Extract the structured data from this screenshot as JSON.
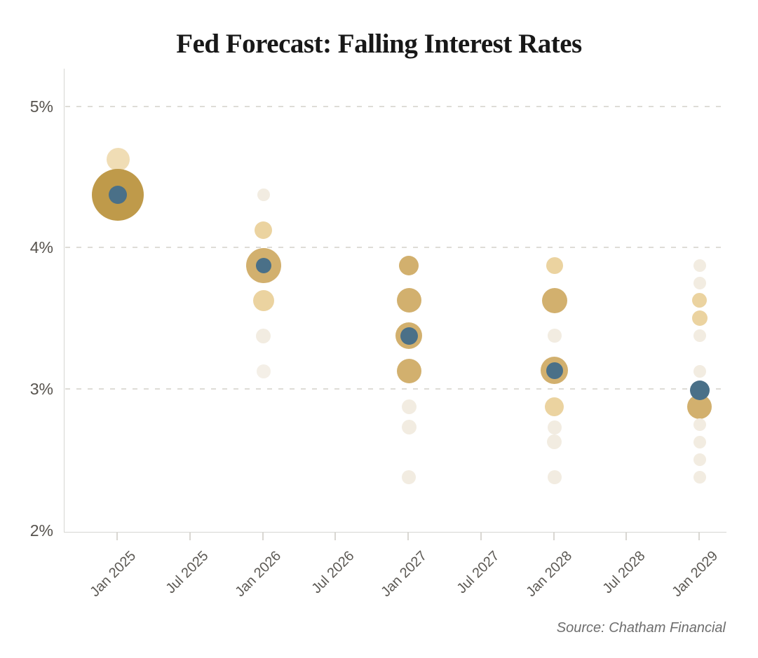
{
  "title": "Fed Forecast: Falling Interest Rates",
  "source": "Source: Chatham Financial",
  "colors": {
    "dot_dark_gold": "#bf9a4a",
    "dot_gold": "#d2b06e",
    "dot_sand": "#ebd3a0",
    "dot_pale": "#f0ddb5",
    "dot_faint": "#f2ece1",
    "dot_fainter": "#f4efe7",
    "market_blue": "#4a7088",
    "gridline": "#dedcd7",
    "axis": "#d6d6d2",
    "tick_label": "#57534e",
    "title_text": "#181818",
    "source_text": "#6e6e6e"
  },
  "chart_data": {
    "type": "scatter",
    "title": "Fed Forecast: Falling Interest Rates",
    "xlabel": "",
    "ylabel": "",
    "x_tick_labels": [
      "Jan 2025",
      "Jul 2025",
      "Jan 2026",
      "Jul 2026",
      "Jan 2027",
      "Jul 2027",
      "Jan 2028",
      "Jul 2028",
      "Jan 2029"
    ],
    "y_tick_labels": [
      "5%",
      "4%",
      "3%",
      "2%"
    ],
    "y_tick_values": [
      5,
      4,
      3,
      2
    ],
    "ylim": [
      2,
      5.27
    ],
    "grid": "horizontal dashed, hidden at 2%",
    "legend": "none",
    "series": [
      {
        "name": "fed-dot-projections",
        "note": "bubble size/shade reflects concentration of Fed dot-plot projections",
        "columns": [
          {
            "date": "Jan 2025",
            "dots": [
              {
                "rate": 4.625,
                "r": 16.5,
                "tier": "pale"
              },
              {
                "rate": 4.375,
                "r": 37,
                "tier": "dark_gold"
              }
            ]
          },
          {
            "date": "Jan 2026",
            "dots": [
              {
                "rate": 4.375,
                "r": 9,
                "tier": "faint"
              },
              {
                "rate": 4.125,
                "r": 12.5,
                "tier": "sand"
              },
              {
                "rate": 3.875,
                "r": 25,
                "tier": "gold"
              },
              {
                "rate": 3.625,
                "r": 15,
                "tier": "sand"
              },
              {
                "rate": 3.375,
                "r": 10.5,
                "tier": "faint"
              },
              {
                "rate": 3.125,
                "r": 10,
                "tier": "fainter"
              }
            ]
          },
          {
            "date": "Jan 2027",
            "dots": [
              {
                "rate": 3.875,
                "r": 14,
                "tier": "gold"
              },
              {
                "rate": 3.625,
                "r": 17.5,
                "tier": "gold"
              },
              {
                "rate": 3.375,
                "r": 19,
                "tier": "gold"
              },
              {
                "rate": 3.125,
                "r": 17.5,
                "tier": "gold"
              },
              {
                "rate": 2.875,
                "r": 10.5,
                "tier": "faint"
              },
              {
                "rate": 2.73,
                "r": 10.5,
                "tier": "faint"
              },
              {
                "rate": 2.375,
                "r": 10,
                "tier": "faint"
              }
            ]
          },
          {
            "date": "Jan 2028",
            "dots": [
              {
                "rate": 3.875,
                "r": 12,
                "tier": "sand"
              },
              {
                "rate": 3.625,
                "r": 18,
                "tier": "gold"
              },
              {
                "rate": 3.375,
                "r": 10,
                "tier": "faint"
              },
              {
                "rate": 3.13,
                "r": 19.5,
                "tier": "gold"
              },
              {
                "rate": 2.875,
                "r": 13.5,
                "tier": "sand"
              },
              {
                "rate": 2.73,
                "r": 10,
                "tier": "faint"
              },
              {
                "rate": 2.625,
                "r": 10.5,
                "tier": "faint"
              },
              {
                "rate": 2.375,
                "r": 10,
                "tier": "faint"
              }
            ]
          },
          {
            "date": "Jan 2029",
            "dots": [
              {
                "rate": 3.875,
                "r": 9,
                "tier": "faint"
              },
              {
                "rate": 3.75,
                "r": 9,
                "tier": "faint"
              },
              {
                "rate": 3.625,
                "r": 10.5,
                "tier": "sand"
              },
              {
                "rate": 3.5,
                "r": 11,
                "tier": "sand"
              },
              {
                "rate": 3.375,
                "r": 9,
                "tier": "faint"
              },
              {
                "rate": 3.125,
                "r": 9,
                "tier": "faint"
              },
              {
                "rate": 2.875,
                "r": 17.5,
                "tier": "gold"
              },
              {
                "rate": 2.75,
                "r": 9,
                "tier": "faint"
              },
              {
                "rate": 2.625,
                "r": 9,
                "tier": "faint"
              },
              {
                "rate": 2.5,
                "r": 9,
                "tier": "faint"
              },
              {
                "rate": 2.375,
                "r": 9,
                "tier": "faint"
              }
            ]
          }
        ]
      },
      {
        "name": "market-implied-rate",
        "points": [
          {
            "date": "Jan 2025",
            "rate": 4.375,
            "r": 13
          },
          {
            "date": "Jan 2026",
            "rate": 3.875,
            "r": 11
          },
          {
            "date": "Jan 2027",
            "rate": 3.375,
            "r": 12.5
          },
          {
            "date": "Jan 2028",
            "rate": 3.13,
            "r": 12
          },
          {
            "date": "Jan 2029",
            "rate": 2.99,
            "r": 14
          }
        ]
      }
    ]
  }
}
